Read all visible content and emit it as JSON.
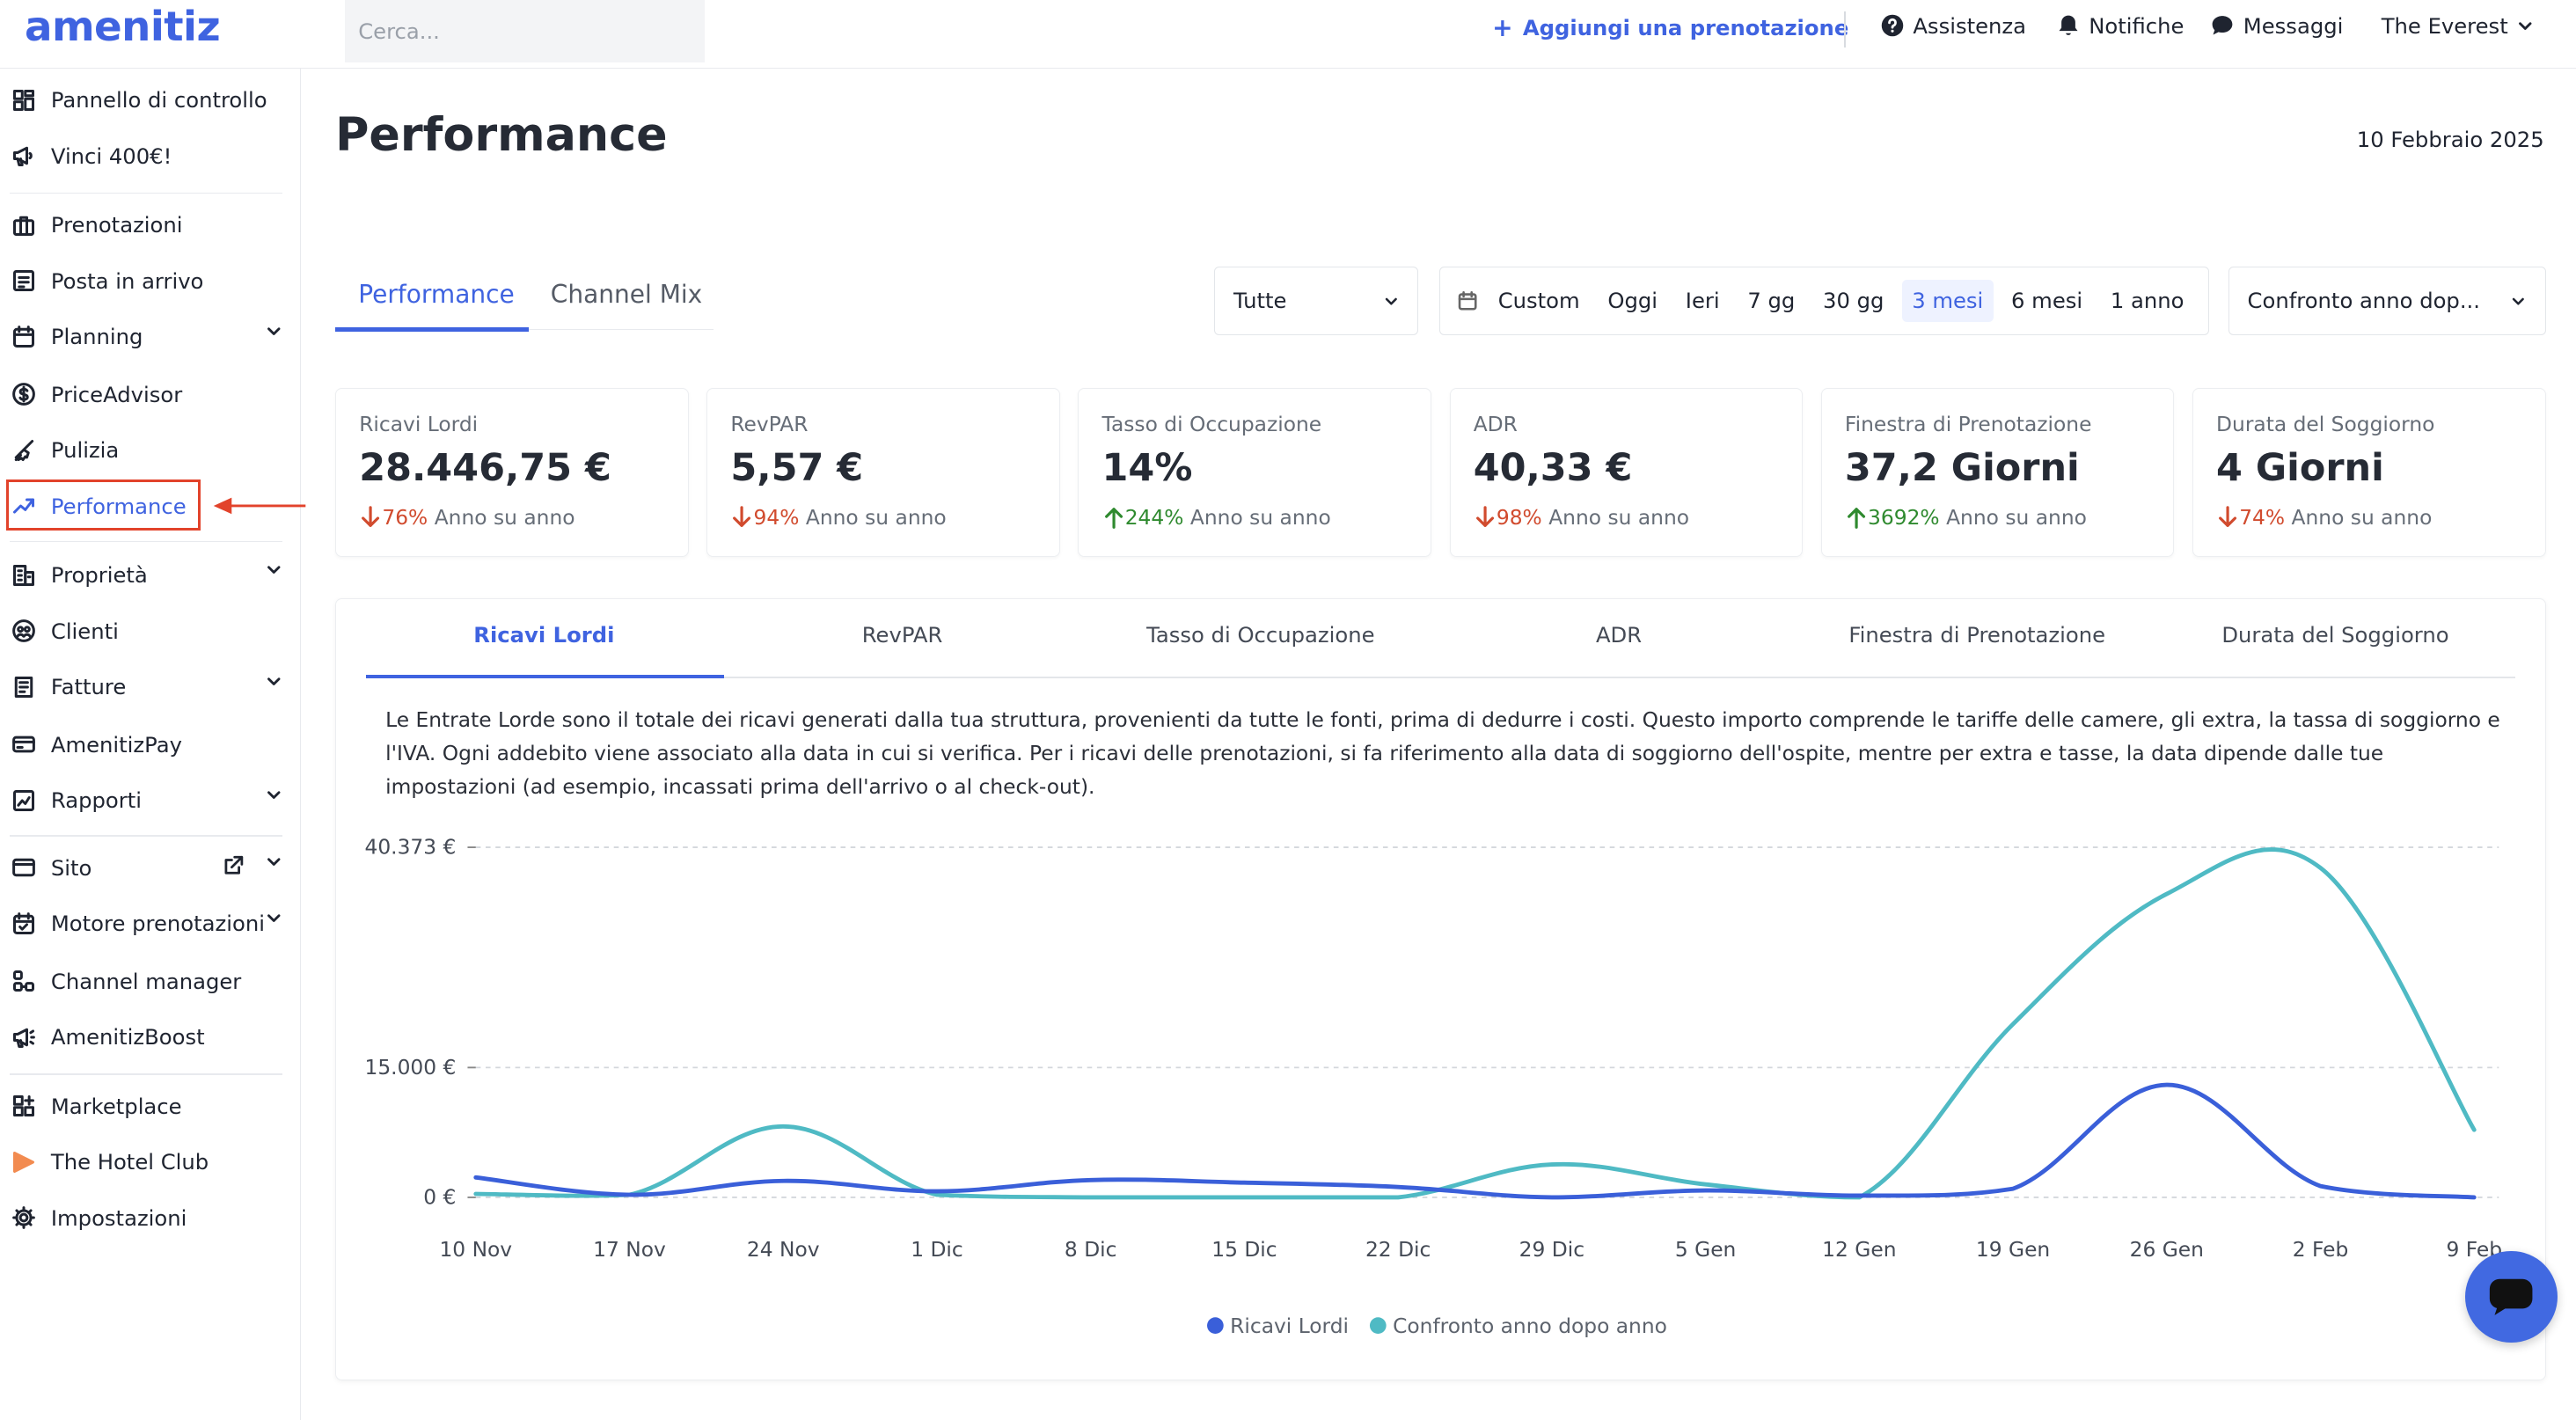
{
  "header": {
    "logo": "amenitiz",
    "search_placeholder": "Cerca...",
    "add_booking": "Aggiungi una prenotazione",
    "help": "Assistenza",
    "notifications": "Notifiche",
    "messages": "Messaggi",
    "property": "The Everest"
  },
  "sidebar": {
    "items": [
      {
        "label": "Pannello di controllo",
        "icon": "dashboard-icon"
      },
      {
        "label": "Vinci 400€!",
        "icon": "megaphone-icon"
      },
      {
        "label": "Prenotazioni",
        "icon": "suitcase-icon"
      },
      {
        "label": "Posta in arrivo",
        "icon": "inbox-icon"
      },
      {
        "label": "Planning",
        "icon": "calendar-icon",
        "expandable": true
      },
      {
        "label": "PriceAdvisor",
        "icon": "dollar-icon"
      },
      {
        "label": "Pulizia",
        "icon": "broom-icon"
      },
      {
        "label": "Performance",
        "icon": "trend-icon",
        "active": true
      },
      {
        "label": "Proprietà",
        "icon": "building-icon",
        "expandable": true
      },
      {
        "label": "Clienti",
        "icon": "users-icon"
      },
      {
        "label": "Fatture",
        "icon": "invoice-icon",
        "expandable": true
      },
      {
        "label": "AmenitizPay",
        "icon": "card-icon"
      },
      {
        "label": "Rapporti",
        "icon": "report-icon",
        "expandable": true
      },
      {
        "label": "Sito",
        "icon": "window-icon",
        "expandable": true,
        "external": true
      },
      {
        "label": "Motore prenotazioni",
        "icon": "booking-engine-icon",
        "expandable": true
      },
      {
        "label": "Channel manager",
        "icon": "channel-icon"
      },
      {
        "label": "AmenitizBoost",
        "icon": "boost-icon"
      },
      {
        "label": "Marketplace",
        "icon": "grid-plus-icon"
      },
      {
        "label": "The Hotel Club",
        "icon": "hotel-club-icon"
      },
      {
        "label": "Impostazioni",
        "icon": "gear-icon"
      }
    ]
  },
  "page": {
    "title": "Performance",
    "date": "10 Febbraio 2025",
    "tabs": [
      "Performance",
      "Channel Mix"
    ],
    "filter_select": "Tutte",
    "ranges": [
      "Custom",
      "Oggi",
      "Ieri",
      "7 gg",
      "30 gg",
      "3 mesi",
      "6 mesi",
      "1 anno"
    ],
    "active_range": "3 mesi",
    "compare_select": "Confronto anno dop..."
  },
  "kpis": [
    {
      "title": "Ricavi Lordi",
      "value": "28.446,75 €",
      "delta": "76%",
      "dir": "down",
      "suffix": "Anno su anno"
    },
    {
      "title": "RevPAR",
      "value": "5,57 €",
      "delta": "94%",
      "dir": "down",
      "suffix": "Anno su anno"
    },
    {
      "title": "Tasso di Occupazione",
      "value": "14%",
      "delta": "244%",
      "dir": "up",
      "suffix": "Anno su anno"
    },
    {
      "title": "ADR",
      "value": "40,33 €",
      "delta": "98%",
      "dir": "down",
      "suffix": "Anno su anno"
    },
    {
      "title": "Finestra di Prenotazione",
      "value": "37,2 Giorni",
      "delta": "3692%",
      "dir": "up",
      "suffix": "Anno su anno"
    },
    {
      "title": "Durata del Soggiorno",
      "value": "4 Giorni",
      "delta": "74%",
      "dir": "down",
      "suffix": "Anno su anno"
    }
  ],
  "chart_tabs": [
    "Ricavi Lordi",
    "RevPAR",
    "Tasso di Occupazione",
    "ADR",
    "Finestra di Prenotazione",
    "Durata del Soggiorno"
  ],
  "chart_description": "Le Entrate Lorde sono il totale dei ricavi generati dalla tua struttura, provenienti da tutte le fonti, prima di dedurre i costi. Questo importo comprende le tariffe delle camere, gli extra, la tassa di soggiorno e l'IVA. Ogni addebito viene associato alla data in cui si verifica. Per i ricavi delle prenotazioni, si fa riferimento alla data di soggiorno dell'ospite, mentre per extra e tasse, la data dipende dalle tue impostazioni (ad esempio, incassati prima dell'arrivo o al check-out).",
  "colors": {
    "accent": "#3f63e0",
    "series1": "#3a5fd9",
    "series2": "#4fbac4",
    "negative": "#d14b2e",
    "positive": "#2f8a2f"
  },
  "chart_data": {
    "type": "line",
    "x": [
      "10 Nov",
      "17 Nov",
      "24 Nov",
      "1 Dic",
      "8 Dic",
      "15 Dic",
      "22 Dic",
      "29 Dic",
      "5 Gen",
      "12 Gen",
      "19 Gen",
      "26 Gen",
      "2 Feb",
      "9 Feb"
    ],
    "y_ticks": [
      {
        "label": "40.373 €",
        "value": 40373
      },
      {
        "label": "15.000 €",
        "value": 15000
      },
      {
        "label": "0 €",
        "value": 0
      }
    ],
    "ylim": [
      0,
      40373
    ],
    "series": [
      {
        "name": "Ricavi Lordi",
        "values": [
          2300,
          300,
          1900,
          700,
          2000,
          1700,
          1200,
          0,
          800,
          200,
          1000,
          13000,
          1300,
          0
        ]
      },
      {
        "name": "Confronto anno dopo anno",
        "values": [
          400,
          300,
          8200,
          300,
          0,
          0,
          0,
          3800,
          1500,
          0,
          20000,
          35000,
          38000,
          7800
        ]
      }
    ],
    "legend": "bottom-center",
    "grid": true
  }
}
